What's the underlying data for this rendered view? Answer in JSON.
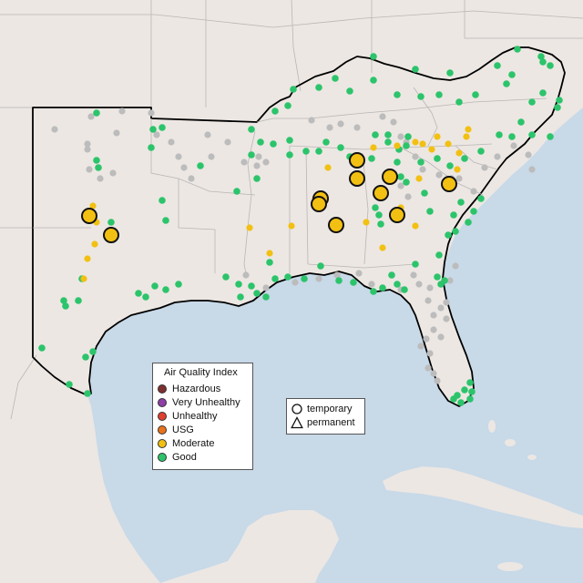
{
  "map": {
    "colors": {
      "ocean": "#c8d9e8",
      "land": "#ece7e3",
      "land_texture": "#e4dfda",
      "borders": "#b9b6b4",
      "region_outline": "#000000",
      "good": "#2cc46b",
      "moderate": "#f2c012",
      "nodata": "#bcbcbc"
    }
  },
  "legend": {
    "title": "Air Quality Index",
    "categories": [
      {
        "label": "Hazardous",
        "color": "#7e2f2f"
      },
      {
        "label": "Very Unhealthy",
        "color": "#8f3fa7"
      },
      {
        "label": "Unhealthy",
        "color": "#e0402f"
      },
      {
        "label": "USG",
        "color": "#e8731c"
      },
      {
        "label": "Moderate",
        "color": "#f2c012"
      },
      {
        "label": "Good",
        "color": "#2cc46b"
      }
    ]
  },
  "monitor_legend": {
    "temporary": "temporary",
    "permanent": "permanent"
  }
}
